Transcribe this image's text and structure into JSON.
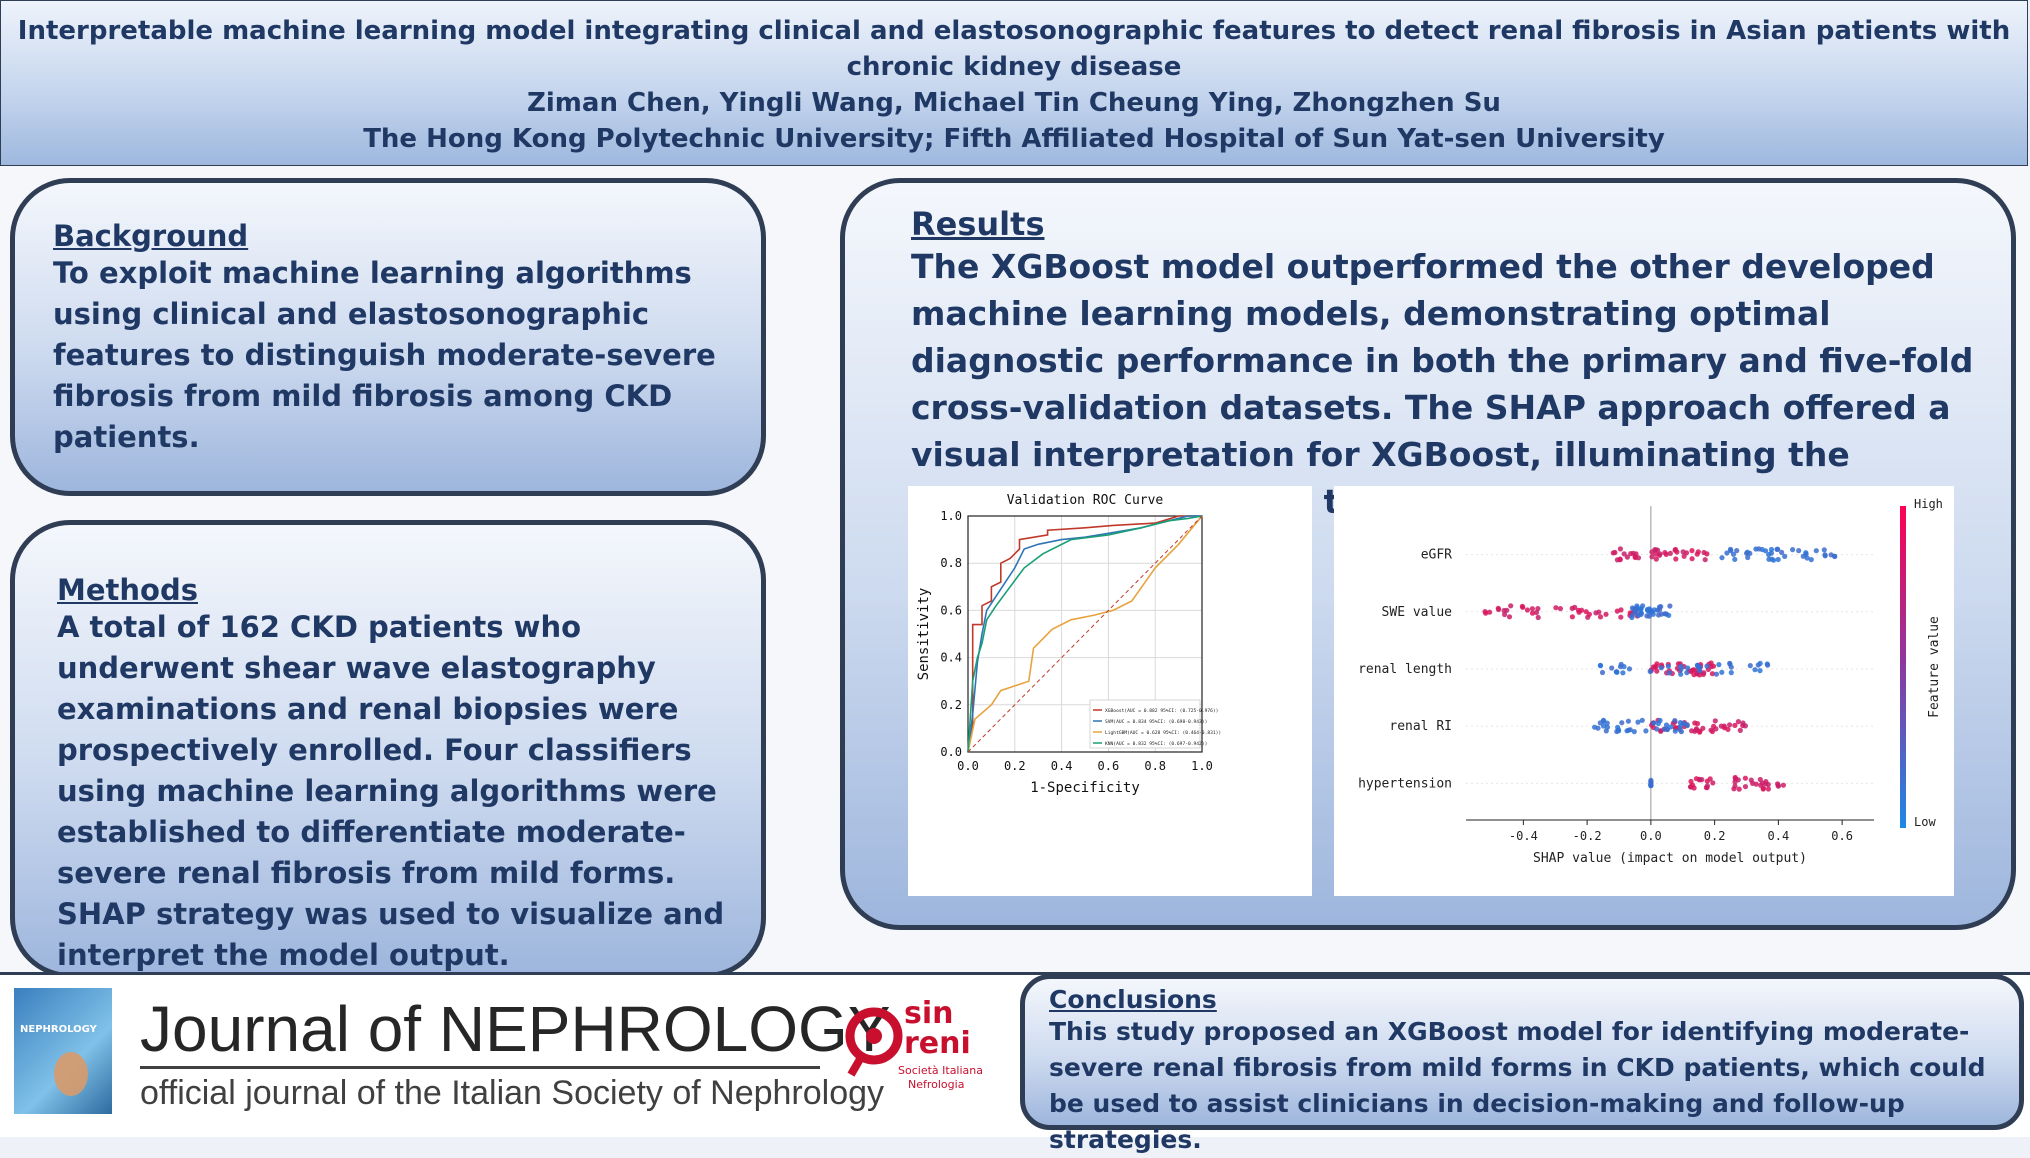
{
  "header": {
    "title": "Interpretable machine learning model integrating clinical and elastosonographic features to detect renal fibrosis in Asian patients with chronic kidney disease",
    "authors": "Ziman Chen, Yingli Wang, Michael Tin Cheung Ying, Zhongzhen Su",
    "affiliations": "The Hong Kong Polytechnic University; Fifth Affiliated Hospital of Sun Yat-sen University"
  },
  "background": {
    "heading": "Background",
    "text": "To exploit machine learning algorithms using clinical and elastosonographic features to distinguish moderate-severe fibrosis from mild fibrosis among CKD patients."
  },
  "methods": {
    "heading": "Methods",
    "text": "A total of 162 CKD patients who underwent shear wave elastography examinations and renal biopsies were prospectively enrolled. Four classifiers using machine learning algorithms were established to differentiate moderate-severe renal fibrosis from mild forms. SHAP strategy was used to visualize and interpret the model output."
  },
  "results": {
    "heading": "Results",
    "text": "The XGBoost model outperformed the other developed machine learning models, demonstrating optimal diagnostic performance in both the primary and five-fold cross-validation datasets. The SHAP approach offered a visual interpretation for XGBoost, illuminating the impact of features on the diagnostic process."
  },
  "conclusions": {
    "heading": "Conclusions",
    "text": "This study proposed an XGBoost model for identifying moderate-severe renal fibrosis from mild forms in CKD patients, which could be used to assist clinicians in decision-making and follow-up strategies."
  },
  "footer": {
    "journal_name": "Journal of NEPHROLOGY",
    "journal_subtitle": "official journal of the Italian Society of Nephrology",
    "cover_title": "NEPHROLOGY",
    "logo_line1": "sin",
    "logo_line2": "reni",
    "logo_sub1": "Società Italiana",
    "logo_sub2": "Nefrologia"
  },
  "chart_data": [
    {
      "type": "line",
      "title": "Validation ROC Curve",
      "xlabel": "1-Specificity",
      "ylabel": "Sensitivity",
      "xlim": [
        0,
        1
      ],
      "ylim": [
        0,
        1
      ],
      "xticks": [
        "0.0",
        "0.2",
        "0.4",
        "0.6",
        "0.8",
        "1.0"
      ],
      "yticks": [
        "0.0",
        "0.2",
        "0.4",
        "0.6",
        "0.8",
        "1.0"
      ],
      "grid": true,
      "legend_position": "bottom-right",
      "series": [
        {
          "name": "XGBoost(AUC = 0.882 95%CI: (0.725-0.976))",
          "color": "#c0392b",
          "x": [
            0,
            0.02,
            0.02,
            0.06,
            0.06,
            0.1,
            0.1,
            0.14,
            0.14,
            0.18,
            0.22,
            0.22,
            0.34,
            0.34,
            0.5,
            0.62,
            0.8,
            0.9,
            1.0
          ],
          "y": [
            0,
            0.12,
            0.54,
            0.54,
            0.62,
            0.64,
            0.7,
            0.72,
            0.8,
            0.82,
            0.86,
            0.9,
            0.92,
            0.94,
            0.95,
            0.96,
            0.97,
            1.0,
            1.0
          ]
        },
        {
          "name": "SVM(AUC = 0.834 95%CI: (0.698-0.943))",
          "color": "#2e75b6",
          "x": [
            0,
            0.02,
            0.04,
            0.06,
            0.08,
            0.12,
            0.16,
            0.2,
            0.24,
            0.3,
            0.4,
            0.5,
            0.62,
            0.74,
            0.86,
            0.94,
            1.0
          ],
          "y": [
            0,
            0.16,
            0.38,
            0.5,
            0.6,
            0.66,
            0.72,
            0.78,
            0.86,
            0.88,
            0.9,
            0.91,
            0.93,
            0.95,
            0.98,
            1.0,
            1.0
          ]
        },
        {
          "name": "LightGBM(AUC = 0.628 95%CI: (0.464-0.831))",
          "color": "#e7a33e",
          "x": [
            0,
            0.03,
            0.03,
            0.1,
            0.14,
            0.2,
            0.26,
            0.28,
            0.36,
            0.44,
            0.54,
            0.62,
            0.7,
            0.8,
            0.9,
            1.0
          ],
          "y": [
            0,
            0.14,
            0.14,
            0.2,
            0.26,
            0.28,
            0.3,
            0.44,
            0.52,
            0.56,
            0.58,
            0.6,
            0.64,
            0.78,
            0.88,
            1.0
          ]
        },
        {
          "name": "KNN(AUC = 0.832 95%CI: (0.697-0.942))",
          "color": "#1a9e77",
          "x": [
            0,
            0.02,
            0.04,
            0.06,
            0.08,
            0.12,
            0.18,
            0.24,
            0.32,
            0.44,
            0.6,
            0.74,
            0.86,
            0.94,
            1.0
          ],
          "y": [
            0,
            0.3,
            0.4,
            0.46,
            0.56,
            0.62,
            0.7,
            0.78,
            0.84,
            0.9,
            0.92,
            0.95,
            0.98,
            0.99,
            1.0
          ]
        },
        {
          "name": "",
          "color": "#c0392b",
          "dashed": true,
          "x": [
            0,
            1
          ],
          "y": [
            0,
            1
          ]
        }
      ]
    },
    {
      "type": "scatter",
      "xlabel": "SHAP value (impact on model output)",
      "xlim": [
        -0.58,
        0.7
      ],
      "xticks": [
        "-0.4",
        "-0.2",
        "0.0",
        "0.2",
        "0.4",
        "0.6"
      ],
      "colorbar_label": "Feature value",
      "colorbar_high": "High",
      "colorbar_low": "Low",
      "features": [
        {
          "name": "eGFR",
          "high_range": [
            -0.12,
            0.18
          ],
          "low_range": [
            0.22,
            0.58
          ]
        },
        {
          "name": "SWE value",
          "high_range": [
            -0.52,
            -0.04
          ],
          "low_range": [
            -0.06,
            0.06
          ]
        },
        {
          "name": "renal length",
          "high_range": [
            -0.02,
            0.2
          ],
          "low_range": [
            -0.16,
            0.38
          ]
        },
        {
          "name": "renal RI",
          "high_range": [
            0.0,
            0.3
          ],
          "low_range": [
            -0.18,
            0.12
          ]
        },
        {
          "name": "hypertension",
          "high_range": [
            0.12,
            0.42
          ],
          "low_range": [
            0.0,
            0.0
          ]
        }
      ]
    }
  ]
}
